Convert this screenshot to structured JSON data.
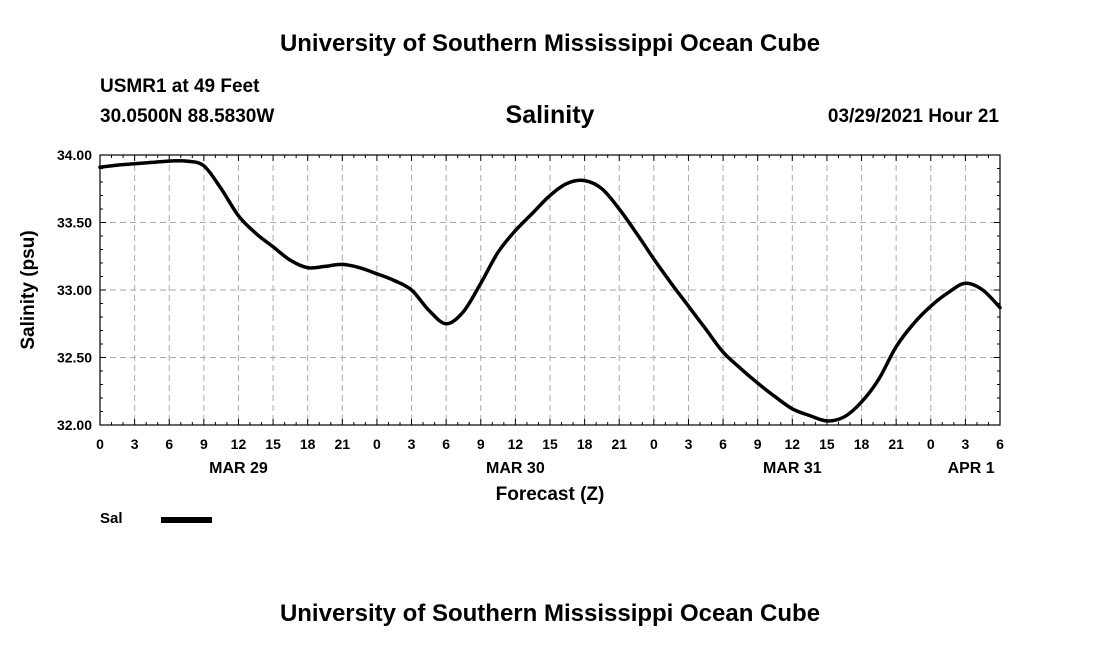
{
  "header": {
    "title": "University of Southern Mississippi Ocean Cube",
    "station": "USMR1 at 49 Feet",
    "coordinates": "30.0500N  88.5830W",
    "date_time": "03/29/2021 Hour 21"
  },
  "footer": {
    "title": "University of Southern Mississippi Ocean Cube"
  },
  "chart_data": {
    "type": "line",
    "title": "Salinity",
    "xlabel": "Forecast (Z)",
    "ylabel": "Salinity (psu)",
    "x_unit": "hours from MAR 29 00Z",
    "xlim": [
      0,
      78
    ],
    "ylim": [
      32.0,
      34.0
    ],
    "grid": true,
    "y_ticks": [
      32.0,
      32.5,
      33.0,
      33.5,
      34.0
    ],
    "y_tick_labels": [
      "32.00",
      "32.50",
      "33.00",
      "33.50",
      "34.00"
    ],
    "x_ticks": [
      0,
      3,
      6,
      9,
      12,
      15,
      18,
      21,
      24,
      27,
      30,
      33,
      36,
      39,
      42,
      45,
      48,
      51,
      54,
      57,
      60,
      63,
      66,
      69,
      72,
      75,
      78
    ],
    "x_tick_labels": [
      "0",
      "3",
      "6",
      "9",
      "12",
      "15",
      "18",
      "21",
      "0",
      "3",
      "6",
      "9",
      "12",
      "15",
      "18",
      "21",
      "0",
      "3",
      "6",
      "9",
      "12",
      "15",
      "18",
      "21",
      "0",
      "3",
      "6"
    ],
    "date_labels": [
      {
        "label": "MAR 29",
        "x": 12
      },
      {
        "label": "MAR 30",
        "x": 36
      },
      {
        "label": "MAR 31",
        "x": 60
      },
      {
        "label": "APR 1",
        "x": 75.5
      }
    ],
    "legend": {
      "position": "bottom-left",
      "entries": [
        {
          "name": "Sal"
        }
      ]
    },
    "series": [
      {
        "name": "Sal",
        "color": "#000000",
        "x": [
          0,
          1.5,
          3,
          4.5,
          6,
          7.5,
          9,
          10.5,
          12,
          13.5,
          15,
          16.5,
          18,
          19.5,
          21,
          22.5,
          24,
          25.5,
          27,
          28.5,
          30,
          31.5,
          33,
          34.5,
          36,
          37.5,
          39,
          40.5,
          42,
          43.5,
          45,
          46.5,
          48,
          49.5,
          51,
          52.5,
          54,
          55.5,
          57,
          58.5,
          60,
          61.5,
          63,
          64.5,
          66,
          67.5,
          69,
          70.5,
          72,
          73.5,
          75,
          76.5,
          78
        ],
        "values": [
          33.91,
          33.925,
          33.935,
          33.945,
          33.955,
          33.955,
          33.92,
          33.75,
          33.55,
          33.42,
          33.32,
          33.22,
          33.165,
          33.175,
          33.19,
          33.165,
          33.12,
          33.07,
          33.0,
          32.85,
          32.75,
          32.84,
          33.05,
          33.28,
          33.44,
          33.57,
          33.7,
          33.79,
          33.81,
          33.75,
          33.6,
          33.42,
          33.23,
          33.05,
          32.88,
          32.71,
          32.54,
          32.42,
          32.31,
          32.21,
          32.12,
          32.07,
          32.03,
          32.06,
          32.17,
          32.34,
          32.58,
          32.75,
          32.88,
          32.98,
          33.05,
          33.0,
          32.87
        ]
      }
    ]
  }
}
